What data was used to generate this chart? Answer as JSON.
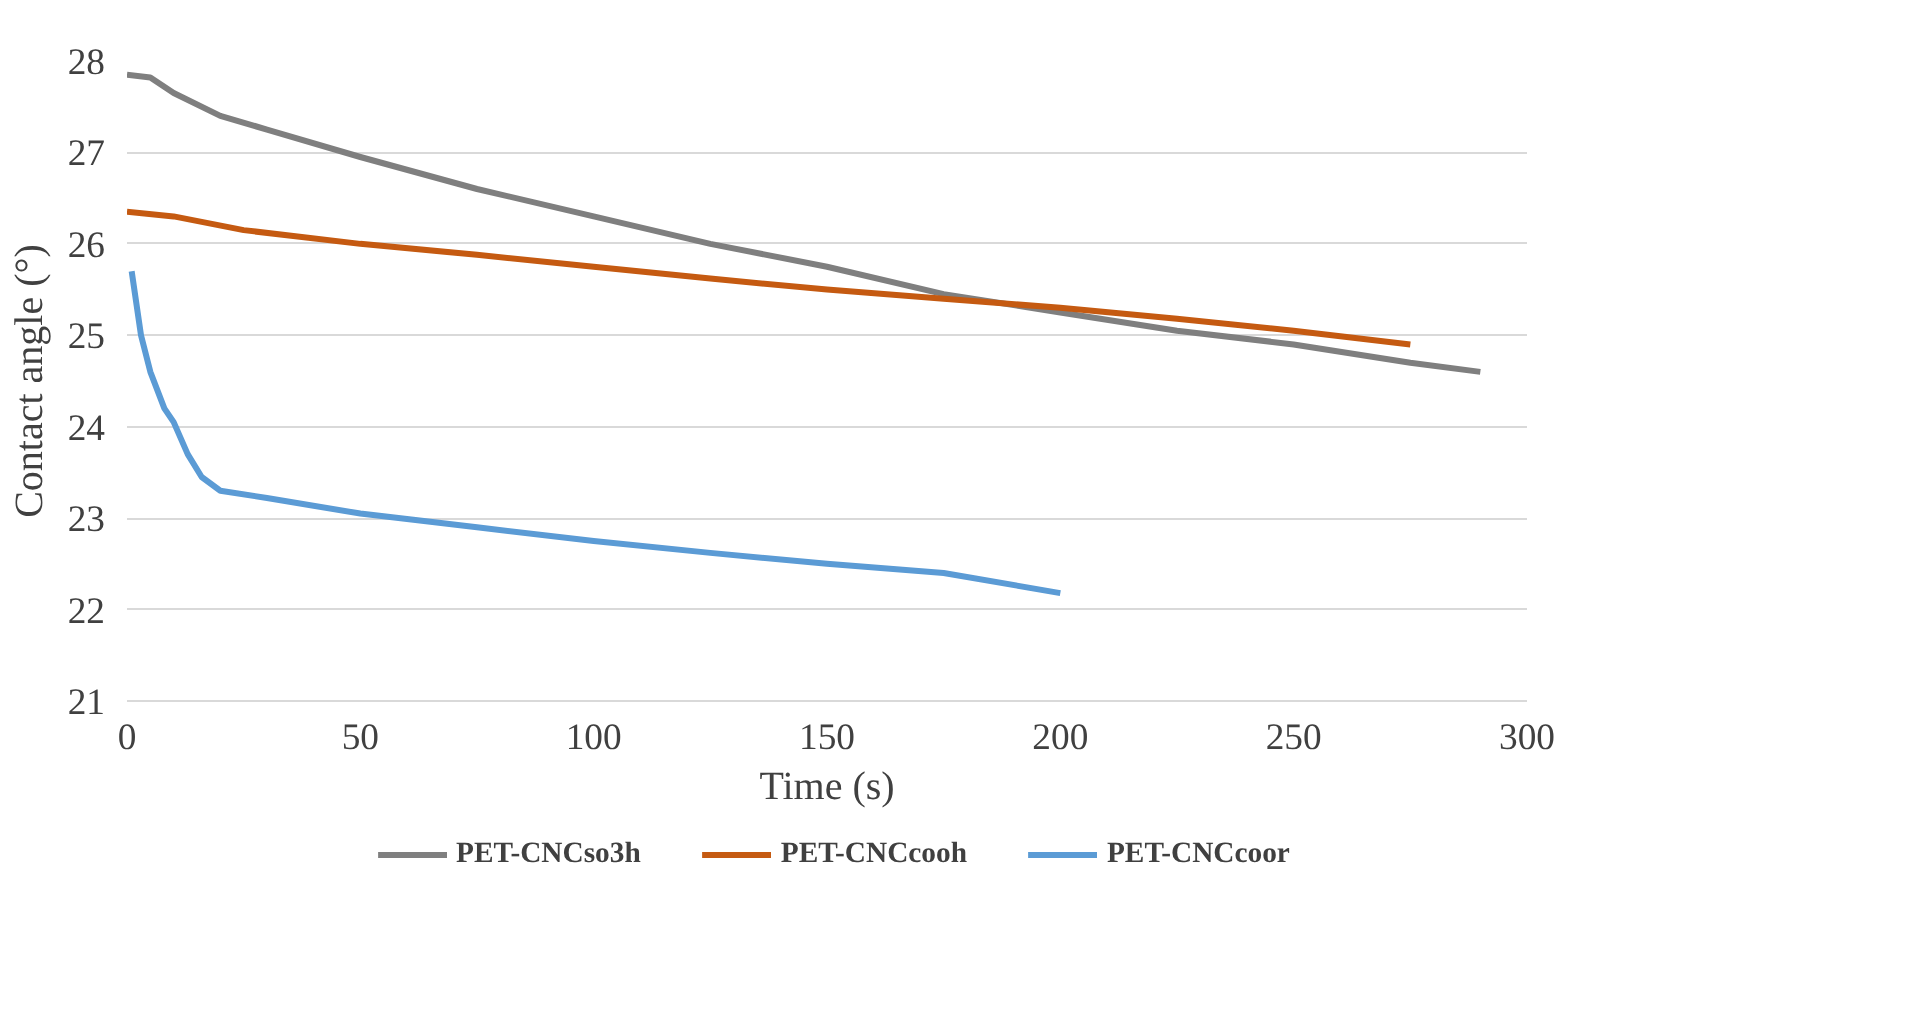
{
  "chart_data": {
    "type": "line",
    "xlabel": "Time (s)",
    "ylabel": "Contact angle (°)",
    "xlim": [
      0,
      300
    ],
    "xticks": [
      0,
      50,
      100,
      150,
      200,
      250,
      300
    ],
    "ylim": [
      21,
      28
    ],
    "yticks": [
      21,
      22,
      23,
      24,
      25,
      26,
      27,
      28
    ],
    "grid": "y",
    "legend": "bottom",
    "line_style": "solid",
    "marker": "none",
    "series": [
      {
        "name": "PET-CNCso3h",
        "color": "#7f7f7f",
        "x": [
          0,
          5,
          10,
          20,
          30,
          50,
          75,
          100,
          125,
          150,
          175,
          200,
          225,
          250,
          275,
          290
        ],
        "values": [
          27.85,
          27.82,
          27.65,
          27.4,
          27.25,
          26.95,
          26.6,
          26.3,
          26.0,
          25.75,
          25.45,
          25.25,
          25.05,
          24.9,
          24.7,
          24.6
        ]
      },
      {
        "name": "PET-CNCcooh",
        "color": "#c55a11",
        "x": [
          0,
          10,
          25,
          50,
          75,
          100,
          125,
          150,
          175,
          200,
          225,
          250,
          275
        ],
        "values": [
          26.35,
          26.3,
          26.15,
          26.0,
          25.88,
          25.75,
          25.62,
          25.5,
          25.4,
          25.3,
          25.18,
          25.05,
          24.9
        ]
      },
      {
        "name": "PET-CNCcoor",
        "color": "#5b9bd5",
        "x": [
          1,
          3,
          5,
          8,
          10,
          13,
          16,
          20,
          30,
          50,
          75,
          100,
          125,
          150,
          175,
          200
        ],
        "values": [
          25.7,
          25.0,
          24.6,
          24.2,
          24.05,
          23.7,
          23.45,
          23.3,
          23.22,
          23.05,
          22.9,
          22.75,
          22.62,
          22.5,
          22.4,
          22.18
        ]
      }
    ]
  }
}
